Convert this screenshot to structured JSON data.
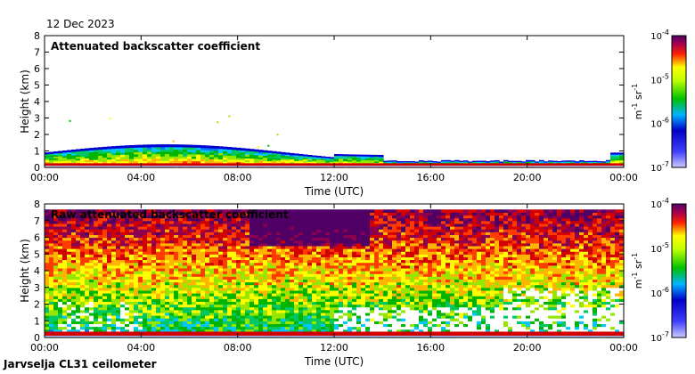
{
  "date_label": "12 Dec 2023",
  "footer_label": "Jarvselja CL31 ceilometer",
  "colorbar": {
    "unit": "m",
    "unit_exp1": "-1",
    "unit_mid": " sr",
    "unit_exp2": "-1",
    "tick_base": "10",
    "tick_exponents": [
      "-4",
      "-5",
      "-6",
      "-7"
    ]
  },
  "chart_data": [
    {
      "type": "heatmap",
      "title": "Attenuated backscatter coefficient",
      "xlabel": "Time (UTC)",
      "ylabel": "Height (km)",
      "x_ticks": [
        "00:00",
        "04:00",
        "08:00",
        "12:00",
        "16:00",
        "20:00",
        "00:00"
      ],
      "y_ticks": [
        "0",
        "1",
        "2",
        "3",
        "4",
        "5",
        "6",
        "7",
        "8"
      ],
      "xlim_hours": [
        0,
        24
      ],
      "ylim_km": [
        0,
        8
      ],
      "color_scale": "log",
      "color_range": [
        "1e-7",
        "1e-4"
      ],
      "description_layers": [
        {
          "feature": "near-surface strong layer",
          "height_km": [
            0,
            0.3
          ],
          "level": "1e-4"
        },
        {
          "feature": "aerosol layer top",
          "height_km": [
            0.3,
            1.3
          ],
          "level": "1e-6"
        }
      ]
    },
    {
      "type": "heatmap",
      "title": "Raw attenuated backscatter coefficient",
      "xlabel": "Time (UTC)",
      "ylabel": "Height (km)",
      "x_ticks": [
        "00:00",
        "04:00",
        "08:00",
        "12:00",
        "16:00",
        "20:00",
        "00:00"
      ],
      "y_ticks": [
        "0",
        "1",
        "2",
        "3",
        "4",
        "5",
        "6",
        "7",
        "8"
      ],
      "xlim_hours": [
        0,
        24
      ],
      "ylim_km": [
        0,
        8
      ],
      "color_scale": "log",
      "color_range": [
        "1e-7",
        "1e-4"
      ]
    }
  ],
  "colors": {
    "low": "#c8c8ff",
    "blue": "#1f3cff",
    "green": "#33cc33",
    "yellow": "#ffff00",
    "red": "#e60000",
    "dark": "#5a0064"
  }
}
